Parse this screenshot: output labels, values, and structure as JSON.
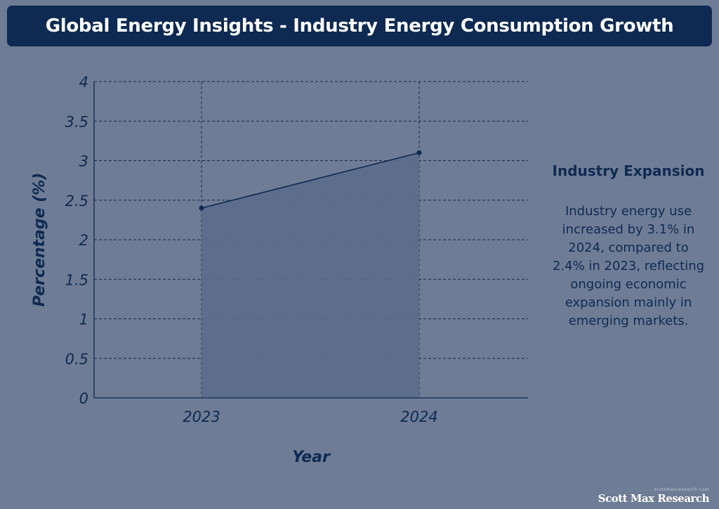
{
  "header": {
    "title": "Global Energy Insights - Industry Energy Consumption Growth"
  },
  "chart_data": {
    "type": "area",
    "title": "Global Energy Insights - Industry Energy Consumption Growth",
    "categories": [
      "2023",
      "2024"
    ],
    "values": [
      2.4,
      3.1
    ],
    "xlabel": "Year",
    "ylabel": "Percentage (%)",
    "ylim": [
      0,
      4
    ],
    "yticks": [
      "0",
      "0.5",
      "1",
      "1.5",
      "2",
      "2.5",
      "3",
      "3.5",
      "4"
    ],
    "grid": true,
    "colors": {
      "line": "#0e2a52",
      "fill": "#5b6d8b",
      "grid": "#1b2a44"
    }
  },
  "panel": {
    "heading": "Industry Expansion",
    "body": "Industry energy use increased by 3.1% in 2024, compared to 2.4% in 2023, reflecting ongoing economic expansion mainly in emerging markets."
  },
  "footer": {
    "small_text": "scottmaxresearch.com",
    "brand": "Scott Max Research"
  }
}
